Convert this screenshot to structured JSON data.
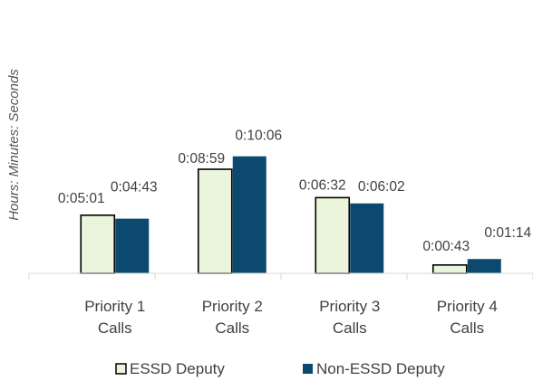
{
  "chart_data": {
    "type": "bar",
    "title": "",
    "ylabel": "Hours: Minutes: Seconds",
    "xlabel": "",
    "categories": [
      [
        "Priority 1",
        "Calls"
      ],
      [
        "Priority 2",
        "Calls"
      ],
      [
        "Priority 3",
        "Calls"
      ],
      [
        "Priority 4",
        "Calls"
      ]
    ],
    "series": [
      {
        "name": "ESSD Deputy",
        "color": "#EAF5DC",
        "stroke": "#000000",
        "values_seconds": [
          301,
          539,
          392,
          43
        ],
        "labels": [
          "0:05:01",
          "0:08:59",
          "0:06:32",
          "0:00:43"
        ]
      },
      {
        "name": "Non-ESSD Deputy",
        "color": "#0B4A6E",
        "stroke": "#0B4A6E",
        "values_seconds": [
          283,
          606,
          362,
          74
        ],
        "labels": [
          "0:04:43",
          "0:10:06",
          "0:06:02",
          "0:01:14"
        ]
      }
    ],
    "ylim": [
      0,
      1500
    ],
    "grid": false,
    "legend_position": "bottom"
  }
}
